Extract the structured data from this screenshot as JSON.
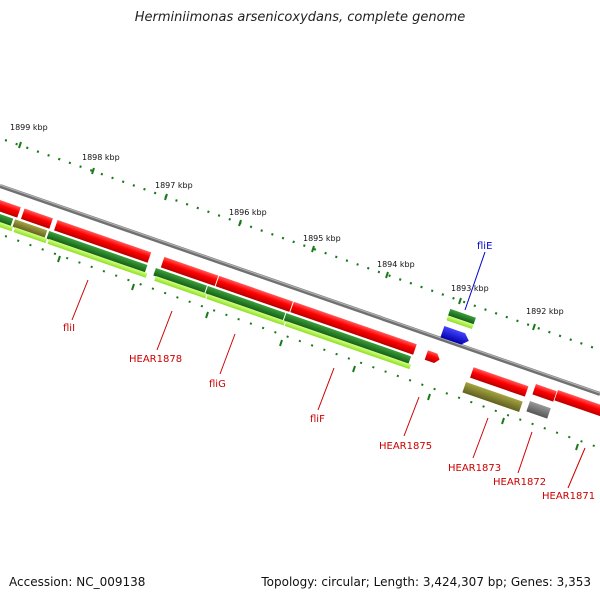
{
  "title": "Herminiimonas arsenicoxydans, complete genome",
  "footer": {
    "accession": "Accession: NC_009138",
    "summary": "Topology: circular; Length: 3,424,307 bp; Genes: 3,353"
  },
  "scale_labels": [
    "1899 kbp",
    "1898 kbp",
    "1897 kbp",
    "1896 kbp",
    "1895 kbp",
    "1894 kbp",
    "1893 kbp",
    "1892 kbp"
  ],
  "gene_labels": {
    "fliE": "fliE",
    "fliI": "fliI",
    "HEAR1878": "HEAR1878",
    "fliG": "fliG",
    "fliF": "fliF",
    "HEAR1875": "HEAR1875",
    "HEAR1873": "HEAR1873",
    "HEAR1872": "HEAR1872",
    "HEAR1871": "HEAR1871"
  },
  "colors": {
    "forward_cds": "#ff0000",
    "label_red": "#cc0000",
    "label_blue": "#0000cc",
    "backbone": "#808080",
    "tick_green": "#1a7a1a",
    "dark_green": "#1f7a1f",
    "light_green": "#aaff44",
    "olive": "#8a8a2a",
    "blue_gene": "#0000ee",
    "gray_gene": "#777777"
  }
}
